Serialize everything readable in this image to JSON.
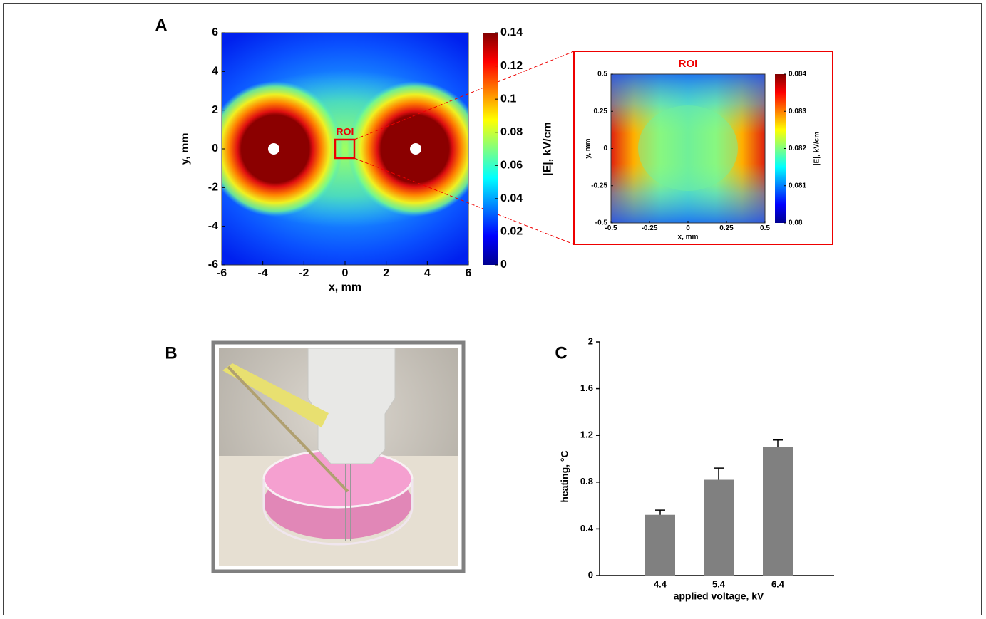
{
  "chart_data": [
    {
      "type": "heatmap",
      "panel_label": "A",
      "xlabel": "x, mm",
      "ylabel": "y, mm",
      "xlim": [
        -6,
        6
      ],
      "ylim": [
        -6,
        6
      ],
      "xticks": [
        -6,
        -4,
        -2,
        0,
        2,
        4,
        6
      ],
      "yticks": [
        -6,
        -4,
        -2,
        0,
        2,
        4,
        6
      ],
      "colormap": "jet",
      "clim": [
        0,
        0.14
      ],
      "cticks": [
        0,
        0.02,
        0.04,
        0.06,
        0.08,
        0.1,
        0.12,
        0.14
      ],
      "clabel": "|E|, kV/cm",
      "annotation": "ROI"
    },
    {
      "type": "heatmap",
      "title": "ROI",
      "xlabel": "x, mm",
      "ylabel": "y, mm",
      "xlim": [
        -0.5,
        0.5
      ],
      "ylim": [
        -0.5,
        0.5
      ],
      "xticks": [
        -0.5,
        -0.25,
        0,
        0.25,
        0.5
      ],
      "yticks": [
        -0.5,
        -0.25,
        0,
        0.25,
        0.5
      ],
      "colormap": "jet",
      "clim": [
        0.08,
        0.084
      ],
      "cticks": [
        0.08,
        0.081,
        0.082,
        0.083,
        0.084
      ],
      "clabel": "|E|, kV/cm"
    },
    {
      "type": "bar",
      "panel_label": "C",
      "xlabel": "applied voltage, kV",
      "ylabel": "heating, °C",
      "categories": [
        "4.4",
        "5.4",
        "6.4"
      ],
      "values": [
        0.52,
        0.82,
        1.1
      ],
      "errors": [
        0.04,
        0.1,
        0.06
      ],
      "color": "#808080",
      "ylim": [
        0,
        2
      ],
      "yticks": [
        0,
        0.4,
        0.8,
        1.2,
        1.6,
        2
      ]
    }
  ],
  "photo": {
    "label": "B"
  }
}
